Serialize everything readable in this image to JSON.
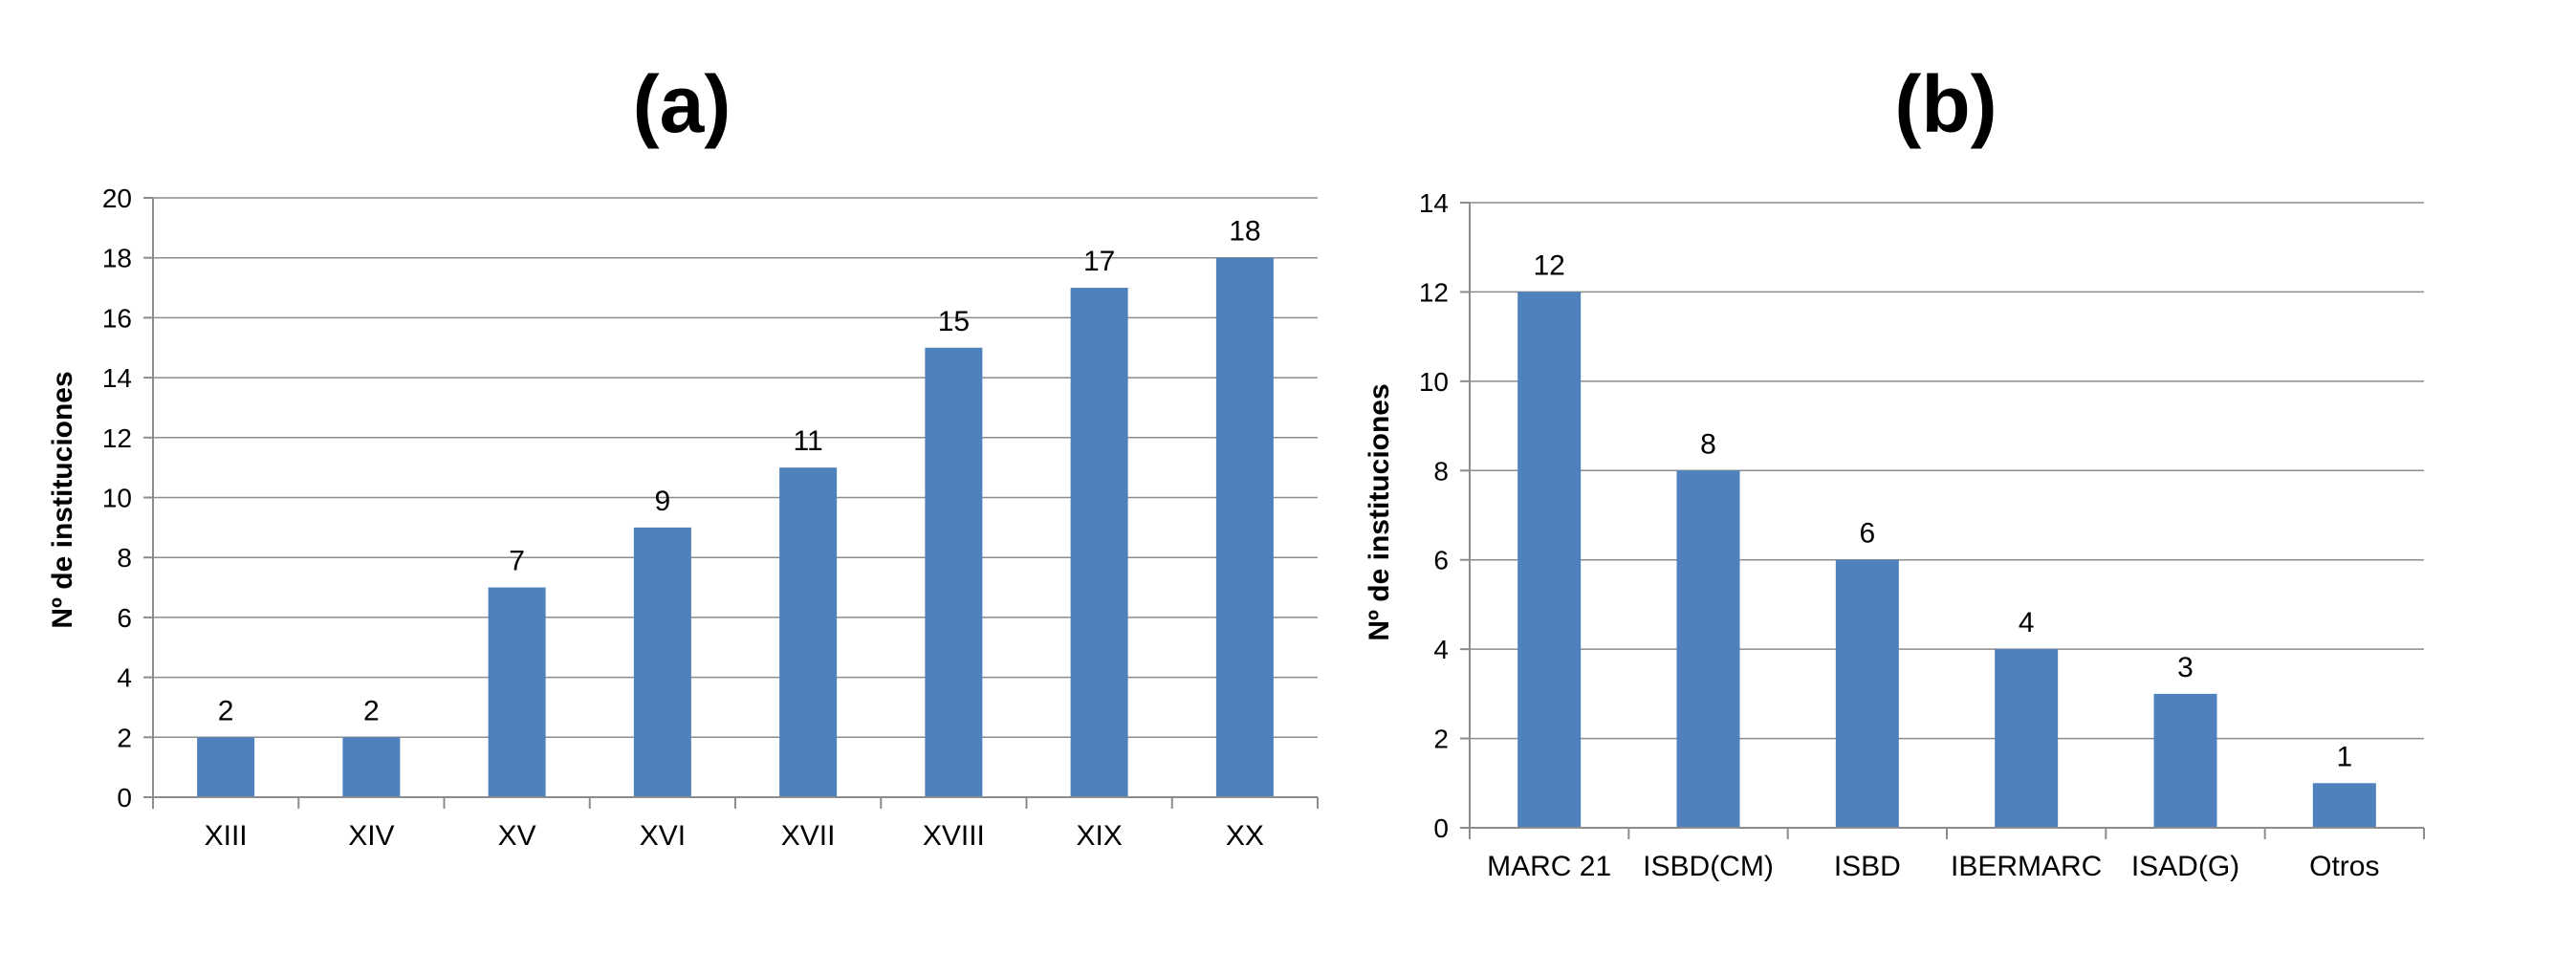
{
  "chart_data": [
    {
      "type": "bar",
      "title": "(a)",
      "ylabel": "Nº de instituciones",
      "xlabel": "",
      "ylim": [
        0,
        20
      ],
      "yticks": [
        0,
        2,
        4,
        6,
        8,
        10,
        12,
        14,
        16,
        18,
        20
      ],
      "grid": true,
      "color": "#4f81bd",
      "categories": [
        "XIII",
        "XIV",
        "XV",
        "XVI",
        "XVII",
        "XVIII",
        "XIX",
        "XX"
      ],
      "values": [
        2,
        2,
        7,
        9,
        11,
        15,
        17,
        18
      ]
    },
    {
      "type": "bar",
      "title": "(b)",
      "ylabel": "Nº de instituciones",
      "xlabel": "",
      "ylim": [
        0,
        14
      ],
      "yticks": [
        0,
        2,
        4,
        6,
        8,
        10,
        12,
        14
      ],
      "grid": true,
      "color": "#4f81bd",
      "categories": [
        "MARC 21",
        "ISBD(CM)",
        "ISBD",
        "IBERMARC",
        "ISAD(G)",
        "Otros"
      ],
      "values": [
        12,
        8,
        6,
        4,
        3,
        1
      ]
    }
  ]
}
